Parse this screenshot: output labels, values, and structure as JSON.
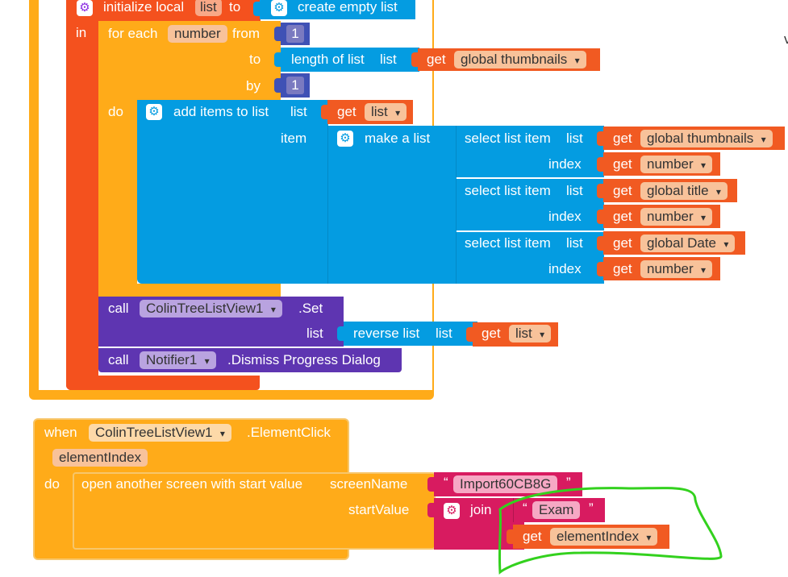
{
  "colors": {
    "control": "#ffab19",
    "local_var": "#f4511e",
    "list": "#049ce1",
    "component": "#5e35b1",
    "text": "#d81b60",
    "variable": "#f15a22",
    "math": "#3f51b5",
    "annotation": "#33d11e"
  },
  "block1": {
    "initialize_local": "initialize local",
    "local_name": "list",
    "to": "to",
    "create_empty_list": "create empty list",
    "in": "in",
    "for_each": "for each",
    "loop_var": "number",
    "from": "from",
    "from_value": "1",
    "to_label": "to",
    "length_of_list": "length of list",
    "list_label": "list",
    "get": "get",
    "global_thumbnails": "global thumbnails",
    "by": "by",
    "by_value": "1",
    "do": "do",
    "add_items_to_list": "add items to list",
    "list_label2": "list",
    "get2": "get",
    "get_list": "list",
    "item": "item",
    "make_a_list": "make a list",
    "selects": [
      {
        "label": "select list item",
        "list": "list",
        "get": "get",
        "var": "global thumbnails",
        "index": "index",
        "get2": "get",
        "index_var": "number"
      },
      {
        "label": "select list item",
        "list": "list",
        "get": "get",
        "var": "global title",
        "index": "index",
        "get2": "get",
        "index_var": "number"
      },
      {
        "label": "select list item",
        "list": "list",
        "get": "get",
        "var": "global Date",
        "index": "index",
        "get2": "get",
        "index_var": "number"
      }
    ],
    "call": "call",
    "component": "ColinTreeListView1",
    "set": ".Set",
    "list_label3": "list",
    "reverse_list": "reverse list",
    "list_label4": "list",
    "get3": "get",
    "get_list2": "list",
    "call2": "call",
    "notifier": "Notifier1",
    "dismiss": ".Dismiss Progress Dialog"
  },
  "block2": {
    "when": "when",
    "component": "ColinTreeListView1",
    "event": ".ElementClick",
    "param": "elementIndex",
    "do": "do",
    "open_screen": "open another screen with start value",
    "screen_name": "screenName",
    "screen_value": "Import60CB8G",
    "start_value": "startValue",
    "join": "join",
    "exam": "Exam",
    "get": "get",
    "element_index": "elementIndex"
  },
  "truncated_right_char": "v",
  "gear_icon": "gear-icon"
}
